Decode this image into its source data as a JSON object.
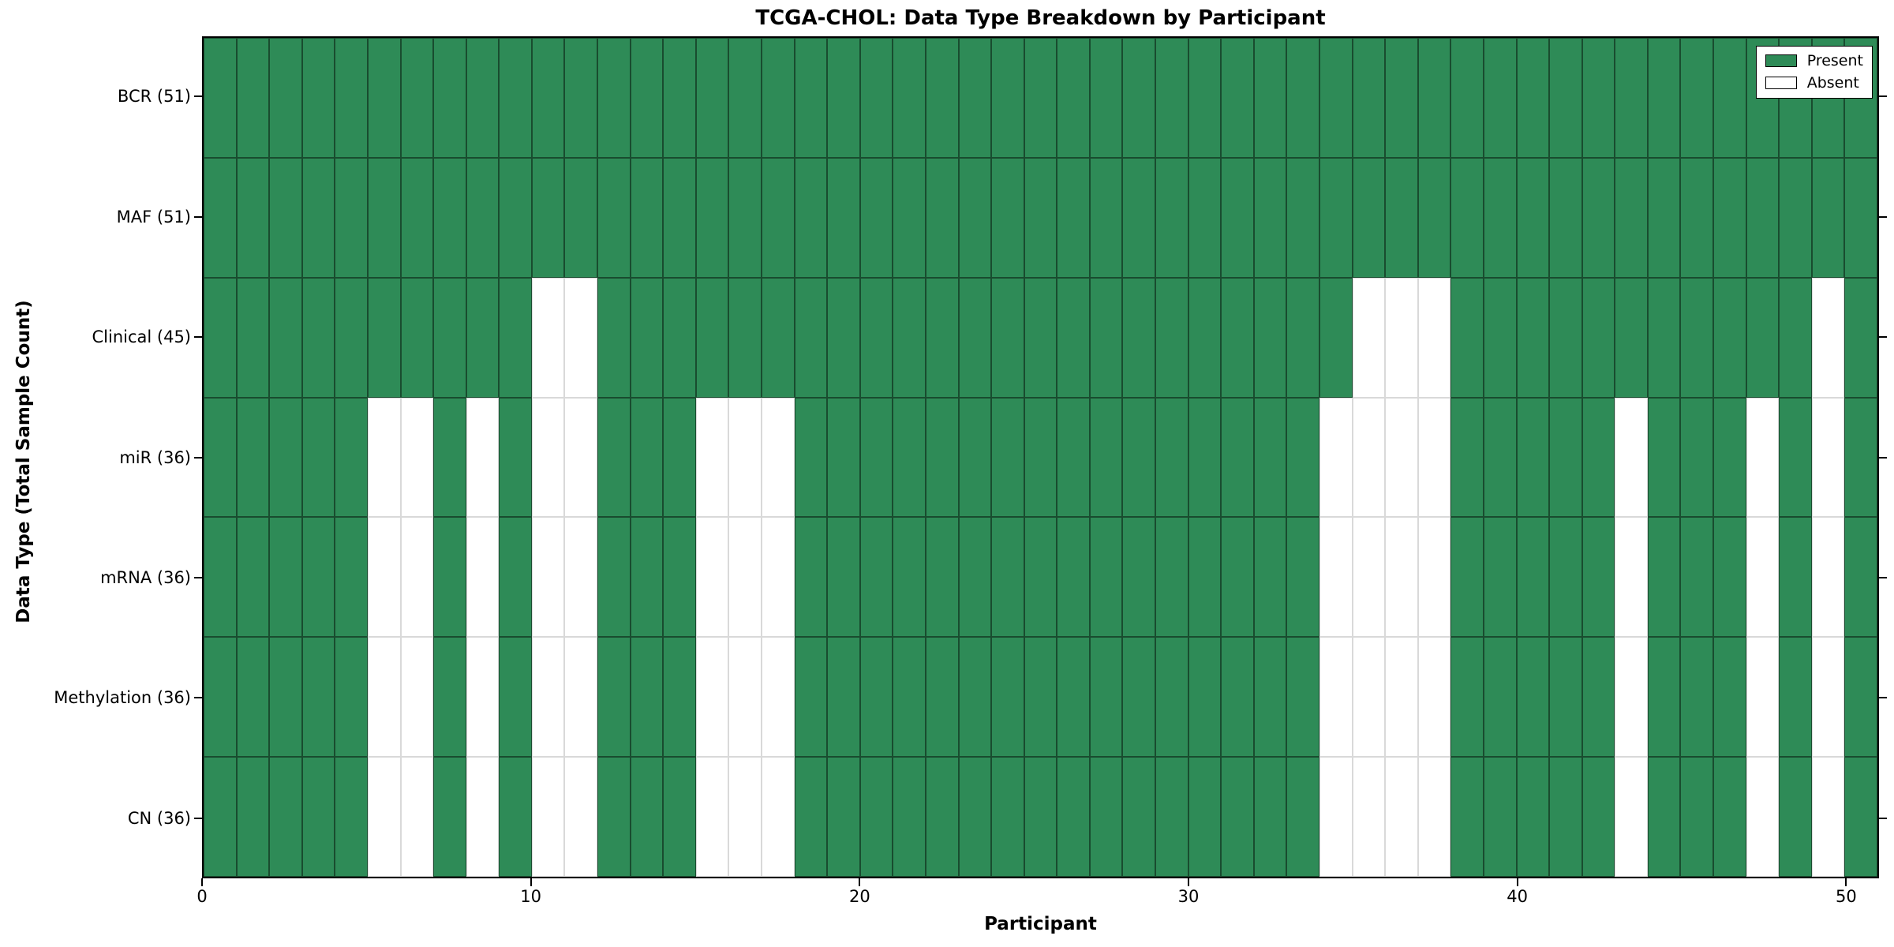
{
  "title": "TCGA-CHOL: Data Type Breakdown by Participant",
  "axes": {
    "xlabel": "Participant",
    "ylabel": "Data Type (Total Sample Count)"
  },
  "legend": {
    "present_label": "Present",
    "absent_label": "Absent"
  },
  "colors": {
    "present": "#2E8B57",
    "absent": "#FFFFFF",
    "spine": "#000000"
  },
  "chart_data": {
    "type": "heatmap",
    "title": "TCGA-CHOL: Data Type Breakdown by Participant",
    "xlabel": "Participant",
    "ylabel": "Data Type (Total Sample Count)",
    "legend_entries": [
      "Present",
      "Absent"
    ],
    "legend_position": "upper right",
    "n_participants": 51,
    "x_range": [
      0,
      51
    ],
    "x_ticks": [
      0,
      10,
      20,
      30,
      40,
      50
    ],
    "value_encoding": {
      "present": 1,
      "absent": 0
    },
    "rows": [
      {
        "label": "BCR (51)",
        "data_type": "BCR",
        "total_sample_count": 51,
        "absent_participants": []
      },
      {
        "label": "MAF (51)",
        "data_type": "MAF",
        "total_sample_count": 51,
        "absent_participants": []
      },
      {
        "label": "Clinical (45)",
        "data_type": "Clinical",
        "total_sample_count": 45,
        "absent_participants": [
          10,
          11,
          35,
          36,
          37,
          49
        ]
      },
      {
        "label": "miR (36)",
        "data_type": "miR",
        "total_sample_count": 36,
        "absent_participants": [
          5,
          6,
          8,
          10,
          11,
          15,
          16,
          17,
          34,
          35,
          36,
          37,
          43,
          47,
          49
        ]
      },
      {
        "label": "mRNA (36)",
        "data_type": "mRNA",
        "total_sample_count": 36,
        "absent_participants": [
          5,
          6,
          8,
          10,
          11,
          15,
          16,
          17,
          34,
          35,
          36,
          37,
          43,
          47,
          49
        ]
      },
      {
        "label": "Methylation (36)",
        "data_type": "Methylation",
        "total_sample_count": 36,
        "absent_participants": [
          5,
          6,
          8,
          10,
          11,
          15,
          16,
          17,
          34,
          35,
          36,
          37,
          43,
          47,
          49
        ]
      },
      {
        "label": "CN (36)",
        "data_type": "CN",
        "total_sample_count": 36,
        "absent_participants": [
          5,
          6,
          8,
          10,
          11,
          15,
          16,
          17,
          34,
          35,
          36,
          37,
          43,
          47,
          49
        ]
      }
    ]
  }
}
